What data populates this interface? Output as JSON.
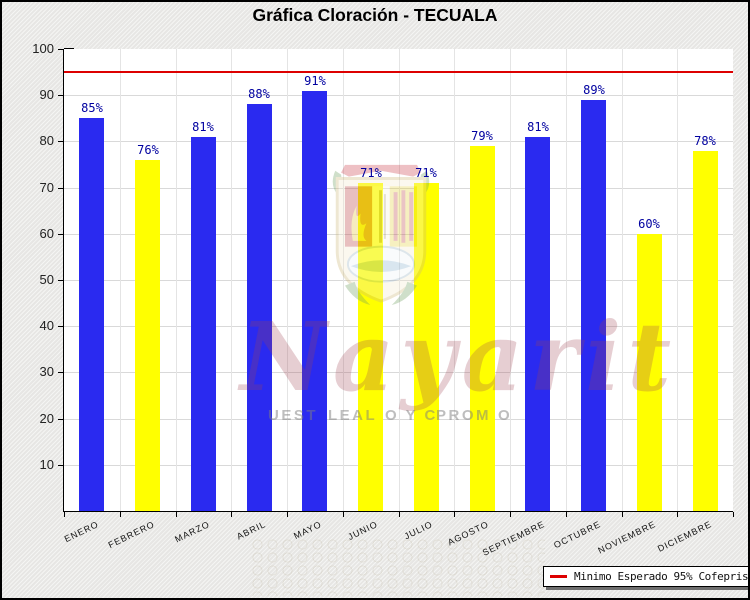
{
  "title": "Gráfica Cloración - TECUALA",
  "chart_data": {
    "type": "bar",
    "title": "Gráfica Cloración - TECUALA",
    "categories": [
      "ENERO",
      "FEBRERO",
      "MARZO",
      "ABRIL",
      "MAYO",
      "JUNIO",
      "JULIO",
      "AGOSTO",
      "SEPTIEMBRE",
      "OCTUBRE",
      "NOVIEMBRE",
      "DICIEMBRE"
    ],
    "values": [
      85,
      76,
      81,
      88,
      91,
      71,
      71,
      79,
      81,
      89,
      60,
      78
    ],
    "value_labels": [
      "85%",
      "76%",
      "81%",
      "88%",
      "91%",
      "71%",
      "71%",
      "79%",
      "81%",
      "89%",
      "60%",
      "78%"
    ],
    "bar_colors": [
      "#2a2af0",
      "#ffff00",
      "#2a2af0",
      "#2a2af0",
      "#2a2af0",
      "#ffff00",
      "#ffff00",
      "#ffff00",
      "#2a2af0",
      "#2a2af0",
      "#ffff00",
      "#ffff00"
    ],
    "xlabel": "",
    "ylabel": "",
    "ylim": [
      0,
      100
    ],
    "yticks": [
      100,
      90,
      80,
      70,
      60,
      50,
      40,
      30,
      20,
      10
    ],
    "grid": true,
    "reference_line": {
      "value": 95,
      "color": "#dd0000",
      "label": "Minimo Esperado 95% Cofepris"
    },
    "legend_position": "bottom-right"
  },
  "legend": {
    "items": [
      {
        "label": "Minimo Esperado 95% Cofepris",
        "color": "#dd0000"
      }
    ]
  },
  "watermark": {
    "script_text": "Nayarit",
    "tagline_fragments": [
      "UEST",
      "LEAL",
      "O Y C",
      "PROM",
      "O"
    ]
  },
  "colors": {
    "blue_bar": "#2a2af0",
    "yellow_bar": "#ffff00",
    "reference_red": "#dd0000",
    "value_label": "#0000a0",
    "plot_bg": "#ffffff",
    "canvas_bg": "#ececea"
  }
}
